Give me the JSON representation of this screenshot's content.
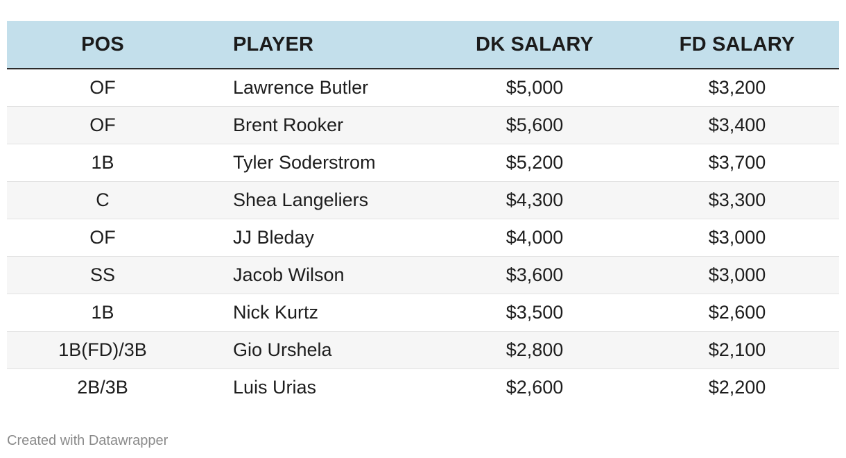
{
  "chart_data": {
    "type": "table",
    "columns": [
      "POS",
      "PLAYER",
      "DK SALARY",
      "FD SALARY"
    ],
    "rows": [
      [
        "OF",
        "Lawrence Butler",
        "$5,000",
        "$3,200"
      ],
      [
        "OF",
        "Brent Rooker",
        "$5,600",
        "$3,400"
      ],
      [
        "1B",
        "Tyler Soderstrom",
        "$5,200",
        "$3,700"
      ],
      [
        "C",
        "Shea Langeliers",
        "$4,300",
        "$3,300"
      ],
      [
        "OF",
        "JJ Bleday",
        "$4,000",
        "$3,000"
      ],
      [
        "SS",
        "Jacob Wilson",
        "$3,600",
        "$3,000"
      ],
      [
        "1B",
        "Nick Kurtz",
        "$3,500",
        "$2,600"
      ],
      [
        "1B(FD)/3B",
        "Gio Urshela",
        "$2,800",
        "$2,100"
      ],
      [
        "2B/3B",
        "Luis Urias",
        "$2,600",
        "$2,200"
      ]
    ],
    "header_color": "#c3dfeb",
    "stripe_color": "#f6f6f6"
  },
  "footer": {
    "credit": "Created with Datawrapper"
  }
}
